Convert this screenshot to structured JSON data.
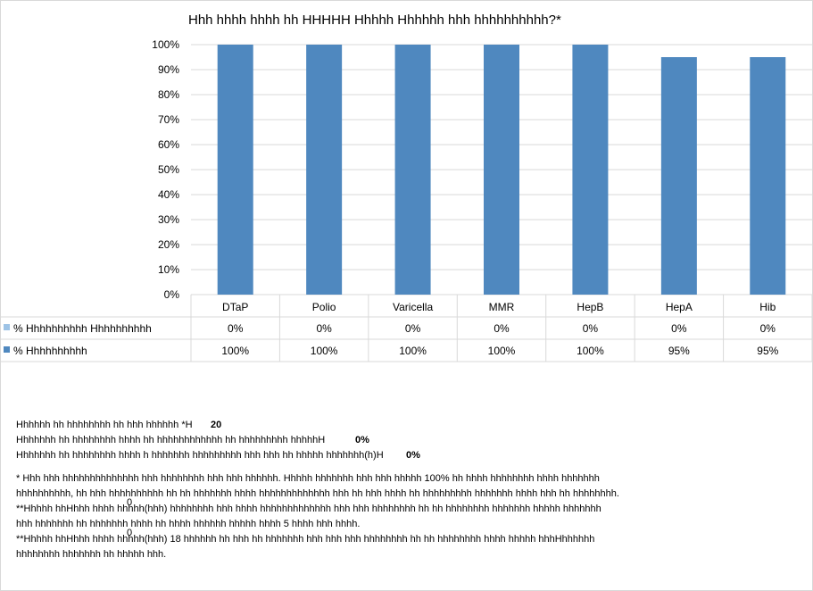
{
  "chart_data": {
    "type": "bar",
    "title": "Hhh hhhh hhhh hh HHHHH Hhhhh Hhhhhh hhh hhhhhhhhhh?*",
    "categories": [
      "DTaP",
      "Polio",
      "Varicella",
      "MMR",
      "HepB",
      "HepA",
      "Hib"
    ],
    "series": [
      {
        "name": "% Hhhhhhhhhh Hhhhhhhhhh",
        "values": [
          0,
          0,
          0,
          0,
          0,
          0,
          0
        ],
        "labels": [
          "0%",
          "0%",
          "0%",
          "0%",
          "0%",
          "0%",
          "0%"
        ],
        "color": "#9dc3e6"
      },
      {
        "name": "% Hhhhhhhhhh",
        "values": [
          100,
          100,
          100,
          100,
          100,
          95,
          95
        ],
        "labels": [
          "100%",
          "100%",
          "100%",
          "100%",
          "100%",
          "95%",
          "95%"
        ],
        "color": "#4f88bf"
      }
    ],
    "ylim": [
      0,
      100
    ],
    "yticks": [
      "0%",
      "10%",
      "20%",
      "30%",
      "40%",
      "50%",
      "60%",
      "70%",
      "80%",
      "90%",
      "100%"
    ],
    "grid": true,
    "legend": "data-table"
  },
  "notes": {
    "line1": {
      "text": "Hhhhhh hh hhhhhhhh hh hhh hhhhhh  *H",
      "overlay": "20"
    },
    "line2": {
      "text": "Hhhhhhh hh hhhhhhhh hhhh hh hhhhhhhhhhhh hh hhhhhhhhh hhhhhH",
      "overlay": "0%"
    },
    "line3": {
      "text": "Hhhhhhh hh hhhhhhhh hhhh h hhhhhhh hhhhhhhhh hhh hhh hh hhhhh hhhhhhh(h)H",
      "overlay": "0%"
    },
    "footnote1_a": "* Hhh hhh hhhhhhhhhhhhhh hhh hhhhhhhh hhh hhh hhhhhh. Hhhhh hhhhhhh hhh hhh hhhhh 100% hh hhhh hhhhhhhh hhhh hhhhhhh",
    "footnote1_b": "hhhhhhhhhh, hh hhh hhhhhhhhhh hh hh hhhhhhh hhhh hhhhhhhhhhhhh hhh hh hhh hhhh hh hhhhhhhhh hhhhhhh hhhh hhh hh hhhhhhhh.",
    "footnote2_a": "**Hhhhh hhHhhh hhhh             hhhhh(hhh) hhhhhhhh hhh hhhh hhhhhhhhhhhhh hhh hhh hhhhhhhh hh hh hhhhhhhh hhhhhhh hhhhh hhhhhhh",
    "footnote2_a_sub": "0",
    "footnote2_b": "hhh hhhhhhh hh hhhhhhh hhhh hh hhhh hhhhhh hhhhh hhhh 5 hhhh hhh hhhh.",
    "footnote3_a": "**Hhhhh hhHhhh hhhh             hhhhh(hhh) 18 hhhhhh hh hhh hh hhhhhhh hhh hhh hhh hhhhhhhh hh hh hhhhhhhh hhhh hhhhh hhhHhhhhhh",
    "footnote3_a_sub": "0",
    "footnote3_b": "hhhhhhhh hhhhhhh hh hhhhh hhh."
  }
}
